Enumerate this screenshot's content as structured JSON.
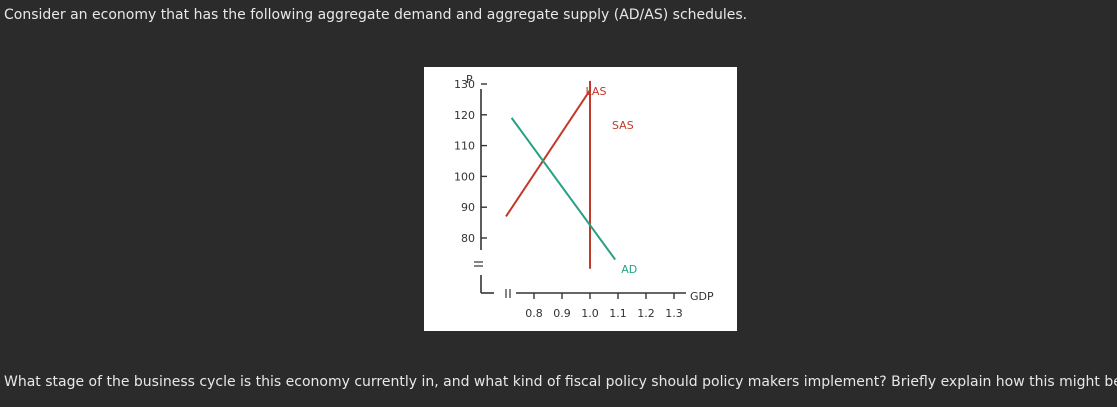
{
  "intro_text": "Consider an economy that has the following aggregate demand and aggregate supply (AD/AS) schedules.",
  "question_text": "What stage of the business cycle is this economy currently in, and what kind of fiscal policy should policy makers implement? Briefly explain how this might be done.",
  "chart_data": {
    "type": "line",
    "xlabel": "GDP",
    "ylabel": "P",
    "x_ticks": [
      "0.8",
      "0.9",
      "1.0",
      "1.1",
      "1.2",
      "1.3"
    ],
    "x_tick_values": [
      0.8,
      0.9,
      1.0,
      1.1,
      1.2,
      1.3
    ],
    "y_ticks": [
      "130",
      "120",
      "110",
      "100",
      "90",
      "80"
    ],
    "y_tick_values": [
      130,
      120,
      110,
      100,
      90,
      80
    ],
    "xlim": [
      0.7,
      1.35
    ],
    "ylim": [
      70,
      133
    ],
    "axis_breaks": true,
    "grid": false,
    "series": [
      {
        "name": "LAS",
        "color": "#c0392b",
        "points": [
          [
            1.0,
            131
          ],
          [
            1.0,
            70
          ]
        ]
      },
      {
        "name": "SAS",
        "color": "#c0392b",
        "points": [
          [
            0.7,
            87
          ],
          [
            1.0,
            128
          ]
        ]
      },
      {
        "name": "AD",
        "color": "#27a085",
        "points": [
          [
            0.72,
            119
          ],
          [
            1.09,
            73
          ]
        ]
      }
    ]
  }
}
